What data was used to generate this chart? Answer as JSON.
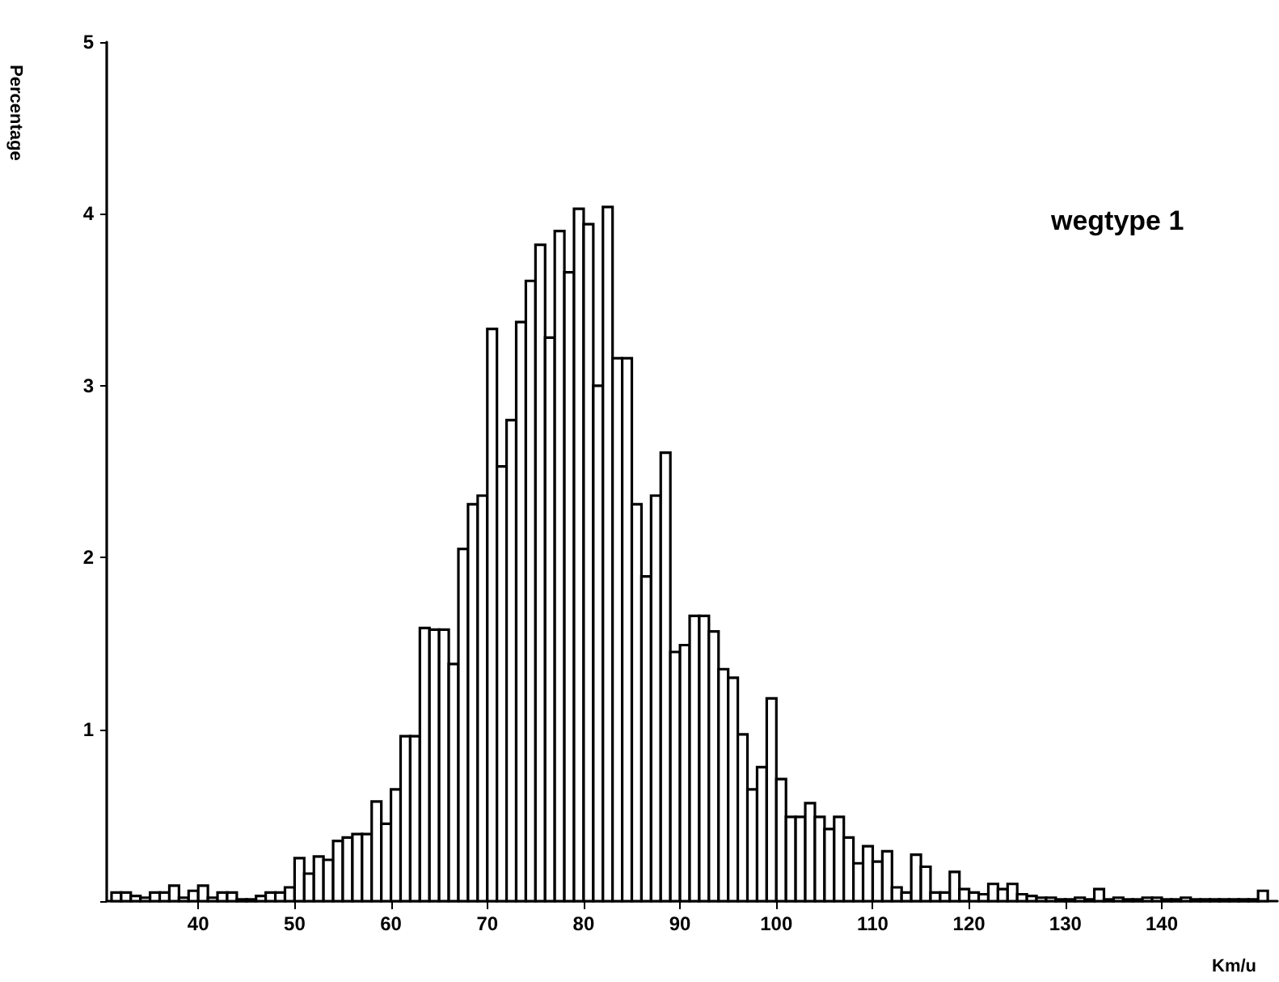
{
  "chart_data": {
    "type": "histogram",
    "xlabel": "Km/u",
    "ylabel": "Percentage",
    "annotations": [
      "wegtype 1"
    ],
    "bins": [
      31,
      32,
      33,
      34,
      35,
      36,
      37,
      38,
      39,
      40,
      41,
      42,
      43,
      44,
      45,
      46,
      47,
      48,
      49,
      50,
      51,
      52,
      53,
      54,
      55,
      56,
      57,
      58,
      59,
      60,
      61,
      62,
      63,
      64,
      65,
      66,
      67,
      68,
      69,
      70,
      71,
      72,
      73,
      74,
      75,
      76,
      77,
      78,
      79,
      80,
      81,
      82,
      83,
      84,
      85,
      86,
      87,
      88,
      89,
      90,
      91,
      92,
      93,
      94,
      95,
      96,
      97,
      98,
      99,
      100,
      101,
      102,
      103,
      104,
      105,
      106,
      107,
      108,
      109,
      110,
      111,
      112,
      113,
      114,
      115,
      116,
      117,
      118,
      119,
      120,
      121,
      122,
      123,
      124,
      125,
      126,
      127,
      128,
      129,
      130,
      131,
      132,
      133,
      134,
      135,
      136,
      137,
      138,
      139,
      140,
      141,
      142,
      143,
      144,
      145,
      146,
      147,
      148,
      149,
      150,
      151
    ],
    "values": [
      0.05,
      0.05,
      0.03,
      0.02,
      0.05,
      0.05,
      0.09,
      0.02,
      0.06,
      0.09,
      0.02,
      0.05,
      0.05,
      0.01,
      0.01,
      0.03,
      0.05,
      0.05,
      0.08,
      0.25,
      0.16,
      0.26,
      0.24,
      0.35,
      0.37,
      0.39,
      0.39,
      0.58,
      0.45,
      0.65,
      0.96,
      0.96,
      1.59,
      1.58,
      1.58,
      1.38,
      2.05,
      2.31,
      2.36,
      3.33,
      2.53,
      2.8,
      3.37,
      3.61,
      3.82,
      3.28,
      3.9,
      3.66,
      4.03,
      3.94,
      3.0,
      4.04,
      3.16,
      3.16,
      2.31,
      1.89,
      2.36,
      2.61,
      1.45,
      1.49,
      1.66,
      1.66,
      1.57,
      1.35,
      1.3,
      0.97,
      0.65,
      0.78,
      1.18,
      0.71,
      0.49,
      0.49,
      0.57,
      0.49,
      0.42,
      0.49,
      0.37,
      0.22,
      0.32,
      0.23,
      0.29,
      0.08,
      0.05,
      0.27,
      0.2,
      0.05,
      0.05,
      0.17,
      0.07,
      0.05,
      0.04,
      0.1,
      0.07,
      0.1,
      0.04,
      0.03,
      0.02,
      0.02,
      0.01,
      0.01,
      0.02,
      0.01,
      0.07,
      0.01,
      0.02,
      0.01,
      0.01,
      0.02,
      0.02,
      0.01,
      0.01,
      0.02,
      0.01,
      0.01,
      0.01,
      0.01,
      0.01,
      0.01,
      0.01,
      0.06
    ],
    "color": "#000000",
    "xlim": [
      30.5,
      152
    ],
    "xticks": [
      40,
      50,
      60,
      70,
      80,
      90,
      100,
      110,
      120,
      130,
      140
    ],
    "ylim": [
      0,
      5
    ],
    "yticks": [
      {
        "value": 0,
        "label": null
      },
      1,
      2,
      3,
      4,
      5
    ],
    "grid": false
  }
}
